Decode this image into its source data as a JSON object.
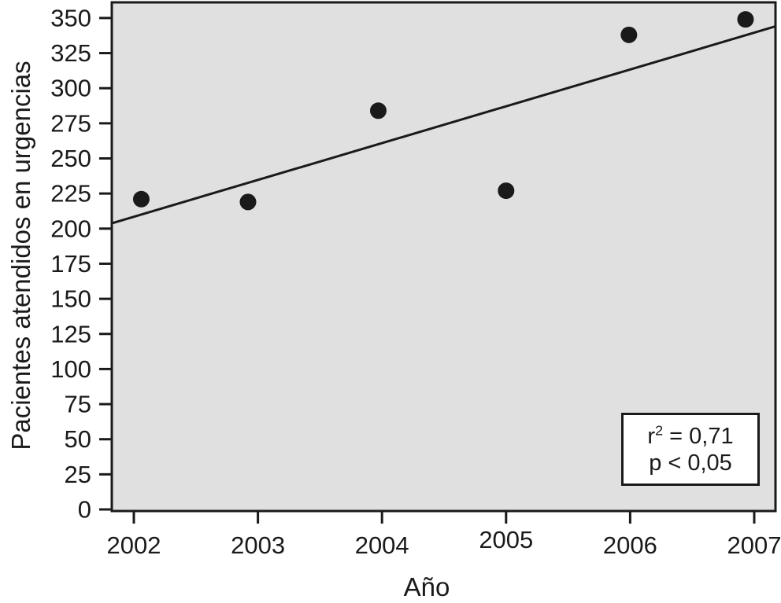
{
  "chart_data": {
    "type": "scatter",
    "title": "",
    "xlabel": "Año",
    "ylabel": "Pacientes atendidos en urgencias",
    "x_ticks": [
      2002,
      2003,
      2004,
      2005,
      2006,
      2007
    ],
    "y_ticks": [
      0,
      25,
      50,
      75,
      100,
      125,
      150,
      175,
      200,
      225,
      250,
      275,
      300,
      325,
      350
    ],
    "xlim": [
      2001.83,
      2007.17
    ],
    "ylim": [
      0,
      350
    ],
    "grid": false,
    "legend_position": "none",
    "points": [
      {
        "year": 2002,
        "value": 221,
        "x": 2002.06
      },
      {
        "year": 2003,
        "value": 219,
        "x": 2002.92
      },
      {
        "year": 2004,
        "value": 284,
        "x": 2003.97
      },
      {
        "year": 2005,
        "value": 227,
        "x": 2005.0
      },
      {
        "year": 2006,
        "value": 338,
        "x": 2005.99
      },
      {
        "year": 2007,
        "value": 349,
        "x": 2006.93
      }
    ],
    "trend_line": {
      "kind": "linear-regression",
      "x1": 2001.83,
      "y1": 204,
      "x2": 2007.17,
      "y2": 344
    },
    "annotation": {
      "line1_base": "r",
      "line1_sup": "2",
      "line1_rest": " = 0,71",
      "line2": "p < 0,05"
    },
    "marker": {
      "shape": "circle",
      "color": "#1a1a1a"
    },
    "colors": {
      "plot_bg": "#e0e0e0",
      "ink": "#1a1a1a",
      "annotation_bg": "#ffffff",
      "page_bg": "#ffffff"
    }
  }
}
